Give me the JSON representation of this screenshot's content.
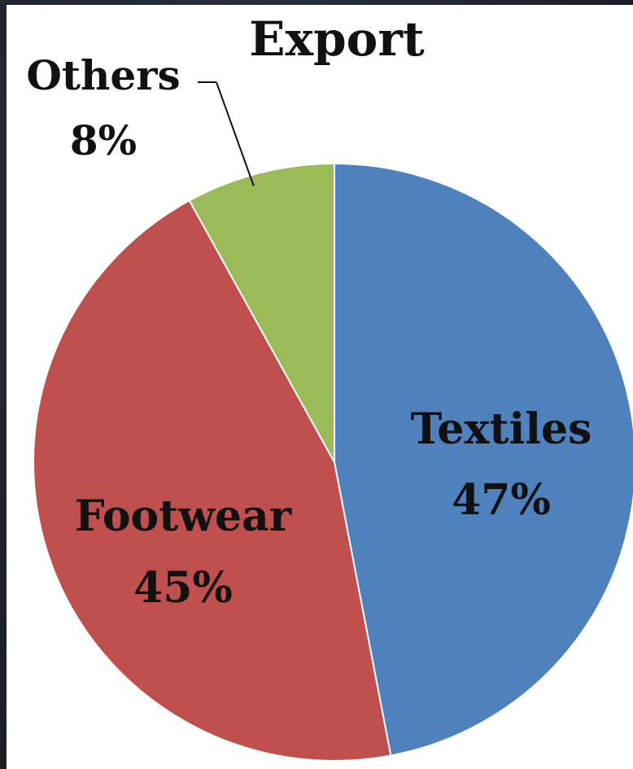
{
  "chart_data": {
    "type": "pie",
    "title": "Export",
    "slices": [
      {
        "label": "Textiles",
        "value": 47,
        "value_label": "47%",
        "color": "#4f81bd"
      },
      {
        "label": "Footwear",
        "value": 45,
        "value_label": "45%",
        "color": "#c0504d"
      },
      {
        "label": "Others",
        "value": 8,
        "value_label": "8%",
        "color": "#9bbb59"
      }
    ],
    "start_angle_deg": 0,
    "direction": "clockwise",
    "legend": "none",
    "labels": "on-slice, Others with leader line"
  }
}
